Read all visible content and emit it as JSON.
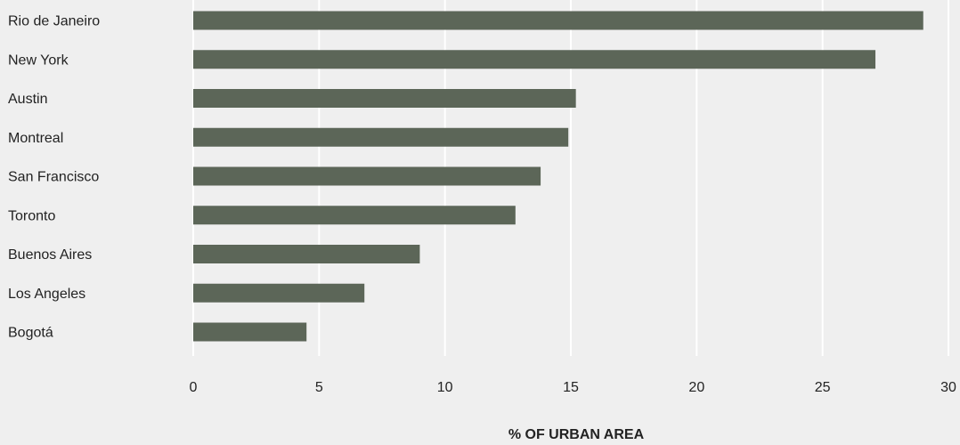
{
  "chart_data": {
    "type": "bar",
    "orientation": "horizontal",
    "categories": [
      "Rio de Janeiro",
      "New York",
      "Austin",
      "Montreal",
      "San Francisco",
      "Toronto",
      "Buenos Aires",
      "Los Angeles",
      "Bogotá"
    ],
    "values": [
      29.0,
      27.1,
      15.2,
      14.9,
      13.8,
      12.8,
      9.0,
      6.8,
      4.5
    ],
    "xlabel": "% OF URBAN AREA",
    "ylabel": "",
    "xlim": [
      0,
      30
    ],
    "xticks": [
      0,
      5,
      10,
      15,
      20,
      25,
      30
    ],
    "grid": "vertical",
    "colors": {
      "bar": "#5c6658",
      "background": "#efefef",
      "gridline": "#ffffff",
      "text": "#222222"
    }
  }
}
